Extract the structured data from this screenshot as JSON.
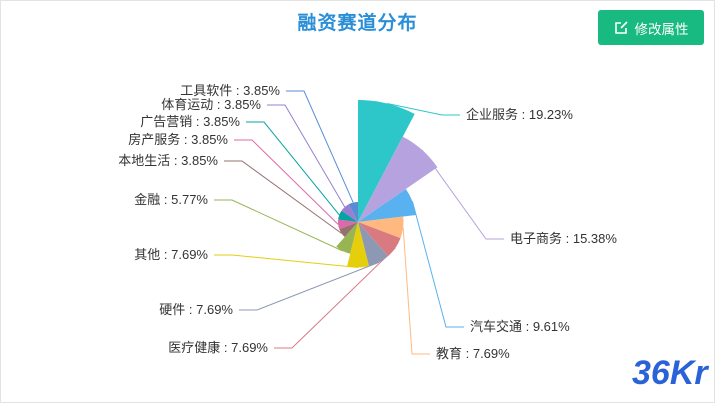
{
  "header": {
    "edit_button_label": "修改属性",
    "edit_icon": "edit-icon"
  },
  "logo": {
    "text": "36Kr",
    "color": "#2a62d8"
  },
  "chart_data": {
    "type": "pie",
    "variant": "rose",
    "title": "融资赛道分布",
    "legend": "none",
    "slices": [
      {
        "label": "企业服务 : 19.23%",
        "value": 19.23,
        "color": "#2ec7c9"
      },
      {
        "label": "电子商务 : 15.38%",
        "value": 15.38,
        "color": "#b6a2de"
      },
      {
        "label": "汽车交通 : 9.61%",
        "value": 9.61,
        "color": "#5ab1ef"
      },
      {
        "label": "教育 : 7.69%",
        "value": 7.69,
        "color": "#ffb980"
      },
      {
        "label": "医疗健康 : 7.69%",
        "value": 7.69,
        "color": "#d87a80"
      },
      {
        "label": "硬件 : 7.69%",
        "value": 7.69,
        "color": "#8d98b3"
      },
      {
        "label": "其他 : 7.69%",
        "value": 7.69,
        "color": "#e5cf0d"
      },
      {
        "label": "金融 : 5.77%",
        "value": 5.77,
        "color": "#97b552"
      },
      {
        "label": "本地生活 : 3.85%",
        "value": 3.85,
        "color": "#95706d"
      },
      {
        "label": "房产服务 : 3.85%",
        "value": 3.85,
        "color": "#dc69aa"
      },
      {
        "label": "广告营销 : 3.85%",
        "value": 3.85,
        "color": "#07a2a4"
      },
      {
        "label": "体育运动 : 3.85%",
        "value": 3.85,
        "color": "#9a7fd1"
      },
      {
        "label": "工具软件 : 3.85%",
        "value": 3.85,
        "color": "#588dd5"
      }
    ]
  }
}
